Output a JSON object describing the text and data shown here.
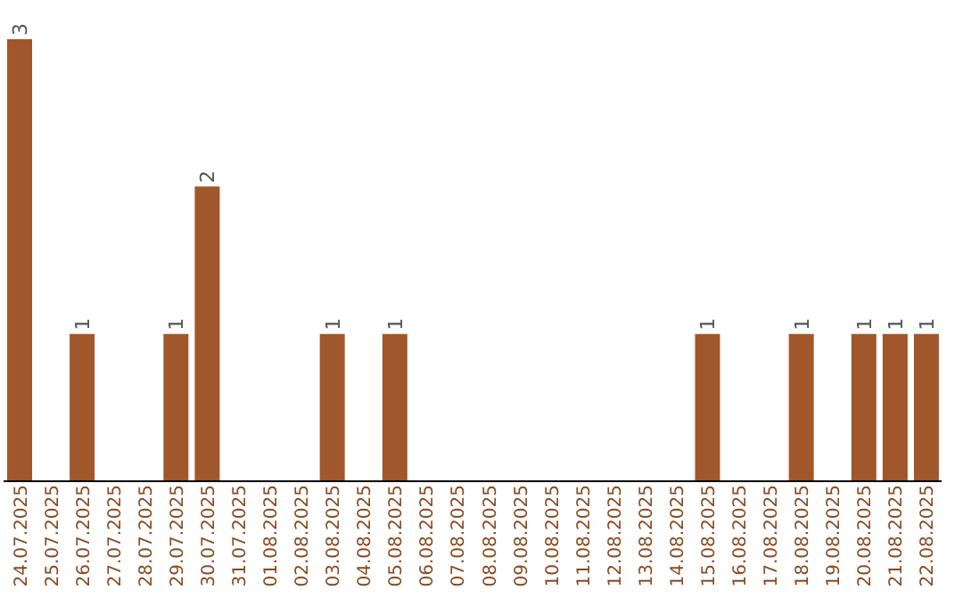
{
  "chart_data": {
    "type": "bar",
    "categories": [
      "24.07.2025",
      "25.07.2025",
      "26.07.2025",
      "27.07.2025",
      "28.07.2025",
      "29.07.2025",
      "30.07.2025",
      "31.07.2025",
      "01.08.2025",
      "02.08.2025",
      "03.08.2025",
      "04.08.2025",
      "05.08.2025",
      "06.08.2025",
      "07.08.2025",
      "08.08.2025",
      "09.08.2025",
      "10.08.2025",
      "11.08.2025",
      "12.08.2025",
      "13.08.2025",
      "14.08.2025",
      "15.08.2025",
      "16.08.2025",
      "17.08.2025",
      "18.08.2025",
      "19.08.2025",
      "20.08.2025",
      "21.08.2025",
      "22.08.2025"
    ],
    "values": [
      3,
      0,
      1,
      0,
      0,
      1,
      2,
      0,
      0,
      0,
      1,
      0,
      1,
      0,
      0,
      0,
      0,
      0,
      0,
      0,
      0,
      0,
      1,
      0,
      0,
      1,
      0,
      1,
      1,
      1
    ],
    "value_labels": [
      "3",
      null,
      "1",
      null,
      null,
      "1",
      "2",
      null,
      null,
      null,
      "1",
      null,
      "1",
      null,
      null,
      null,
      null,
      null,
      null,
      null,
      null,
      null,
      "1",
      null,
      null,
      "1",
      null,
      "1",
      "1",
      "1"
    ],
    "color": "#a0572b"
  }
}
